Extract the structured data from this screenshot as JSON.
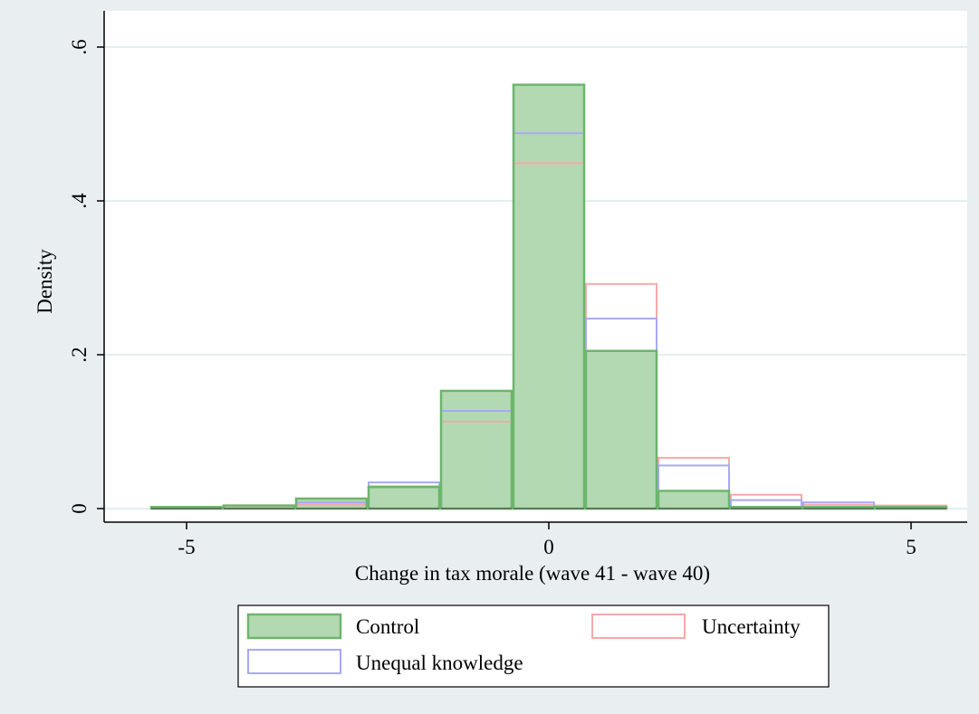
{
  "chart_data": {
    "type": "bar",
    "subtype": "overlaid-histogram",
    "title": "",
    "xlabel": "Change in tax morale (wave 41 - wave 40)",
    "ylabel": "Density",
    "xlim": [
      -6,
      6
    ],
    "ylim": [
      0,
      0.6
    ],
    "x_ticks": [
      -5,
      0,
      5
    ],
    "x_tick_labels": [
      "-5",
      "0",
      "5"
    ],
    "y_ticks": [
      0,
      0.2,
      0.4,
      0.6
    ],
    "y_tick_labels": [
      "0",
      ".2",
      ".4",
      ".6"
    ],
    "grid": "horizontal",
    "legend_position": "bottom",
    "bins": [
      -5,
      -4,
      -3,
      -2,
      -1,
      0,
      1,
      2,
      3,
      4,
      5
    ],
    "bin_width": 1,
    "series": [
      {
        "name": "Control",
        "fill": "#b3d9b3",
        "stroke": "#6db56d",
        "values": [
          0.002,
          0.004,
          0.013,
          0.028,
          0.153,
          0.551,
          0.205,
          0.023,
          0.002,
          0.002,
          0.002
        ]
      },
      {
        "name": "Uncertainty",
        "fill": "none",
        "stroke": "#f7a8a8",
        "values": [
          0.001,
          0.003,
          0.005,
          0.029,
          0.113,
          0.449,
          0.292,
          0.066,
          0.018,
          0.005,
          0.004
        ]
      },
      {
        "name": "Unequal knowledge",
        "fill": "none",
        "stroke": "#a8a8f7",
        "values": [
          0.002,
          0.004,
          0.008,
          0.034,
          0.127,
          0.488,
          0.247,
          0.056,
          0.011,
          0.008,
          0.002
        ]
      }
    ]
  },
  "colors": {
    "background": "#e9eef1",
    "plot_background": "#ffffff",
    "gridline": "#dce8e8",
    "control_outline_dark": "#5a7a5a"
  }
}
